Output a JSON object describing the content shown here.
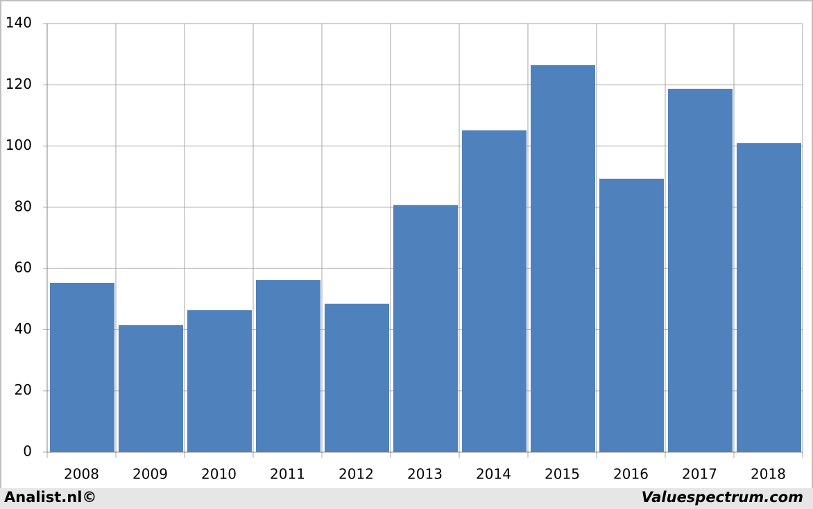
{
  "chart_data": {
    "type": "bar",
    "categories": [
      "2008",
      "2009",
      "2010",
      "2011",
      "2012",
      "2013",
      "2014",
      "2015",
      "2016",
      "2017",
      "2018"
    ],
    "values": [
      55.3,
      41.5,
      46.4,
      56.2,
      48.5,
      80.7,
      105.1,
      126.4,
      89.3,
      118.7,
      101.0
    ],
    "color": "#4f81bd",
    "ylim": [
      0,
      140
    ],
    "yticks": [
      0,
      20,
      40,
      60,
      80,
      100,
      120,
      140
    ],
    "grid": true,
    "annotations": [
      "Analist.nl©",
      "Valuespectrum.com"
    ]
  }
}
